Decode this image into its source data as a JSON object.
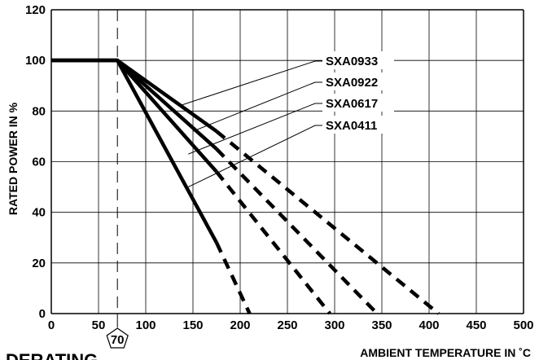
{
  "chart_data": {
    "type": "line",
    "title": "DERATING",
    "xlabel": "AMBIENT TEMPERATURE IN ˚C",
    "ylabel": "RATED POWER IN %",
    "xlim": [
      0,
      500
    ],
    "ylim": [
      0,
      120
    ],
    "xticks": [
      "0",
      "50",
      "100",
      "150",
      "200",
      "250",
      "300",
      "350",
      "400",
      "450",
      "500"
    ],
    "yticks": [
      "0",
      "20",
      "40",
      "60",
      "80",
      "100",
      "120"
    ],
    "grid": true,
    "reference_line": {
      "x": 70,
      "label": "70"
    },
    "series": [
      {
        "name": "SXA0933",
        "solid": [
          [
            0,
            100
          ],
          [
            70,
            100
          ],
          [
            175,
            72
          ]
        ],
        "dashed": [
          [
            175,
            72
          ],
          [
            410,
            0
          ]
        ]
      },
      {
        "name": "SXA0922",
        "solid": [
          [
            0,
            100
          ],
          [
            70,
            100
          ],
          [
            175,
            65
          ]
        ],
        "dashed": [
          [
            175,
            65
          ],
          [
            345,
            0
          ]
        ]
      },
      {
        "name": "SXA0617",
        "solid": [
          [
            0,
            100
          ],
          [
            70,
            100
          ],
          [
            175,
            56
          ]
        ],
        "dashed": [
          [
            175,
            56
          ],
          [
            295,
            0
          ]
        ]
      },
      {
        "name": "SXA0411",
        "solid": [
          [
            0,
            100
          ],
          [
            70,
            100
          ],
          [
            175,
            28
          ]
        ],
        "dashed": [
          [
            175,
            28
          ],
          [
            210,
            0
          ]
        ]
      }
    ],
    "annotations": [
      {
        "text": "SXA0933",
        "target": [
          135,
          82
        ]
      },
      {
        "text": "SXA0922",
        "target": [
          150,
          72
        ]
      },
      {
        "text": "SXA0617",
        "target": [
          145,
          63
        ]
      },
      {
        "text": "SXA0411",
        "target": [
          145,
          50
        ]
      }
    ]
  }
}
